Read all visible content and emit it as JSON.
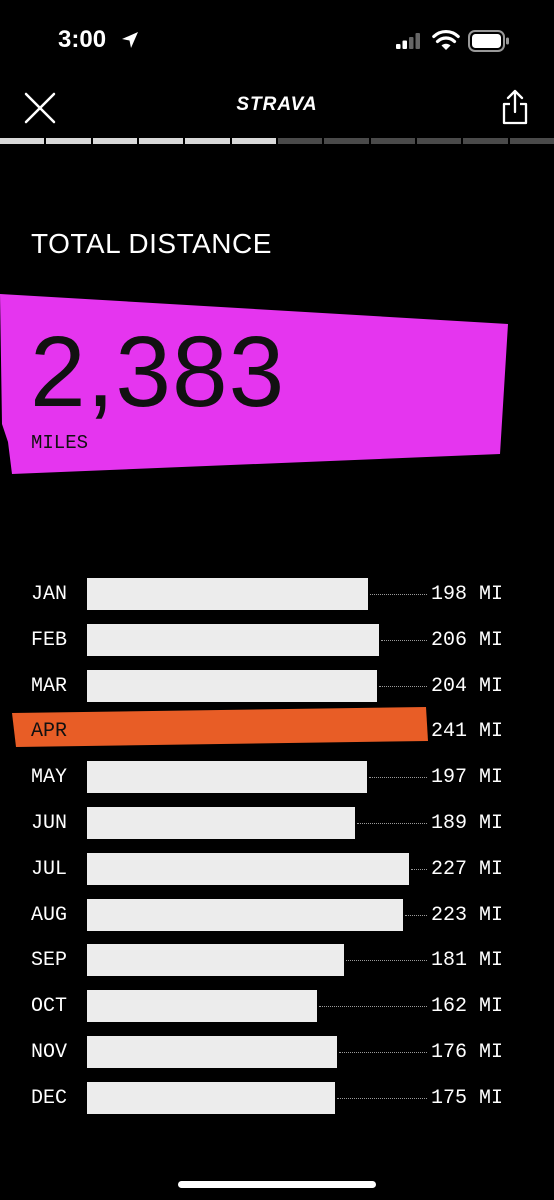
{
  "status_bar": {
    "time": "3:00"
  },
  "nav": {
    "brand": "STRAVA"
  },
  "story_progress": {
    "segments": 12,
    "completed": 6
  },
  "section_title": "TOTAL DISTANCE",
  "total": {
    "value": "2,383",
    "unit": "MILES",
    "panel_color": "#e535ef"
  },
  "highlight_color": "#e85d26",
  "chart_data": {
    "type": "bar",
    "orientation": "horizontal",
    "categories": [
      "JAN",
      "FEB",
      "MAR",
      "APR",
      "MAY",
      "JUN",
      "JUL",
      "AUG",
      "SEP",
      "OCT",
      "NOV",
      "DEC"
    ],
    "values": [
      198,
      206,
      204,
      241,
      197,
      189,
      227,
      223,
      181,
      162,
      176,
      175
    ],
    "value_labels": [
      "198 MI",
      "206 MI",
      "204 MI",
      "241 MI",
      "197 MI",
      "189 MI",
      "227 MI",
      "223 MI",
      "181 MI",
      "162 MI",
      "176 MI",
      "175 MI"
    ],
    "highlight_index": 3
  }
}
